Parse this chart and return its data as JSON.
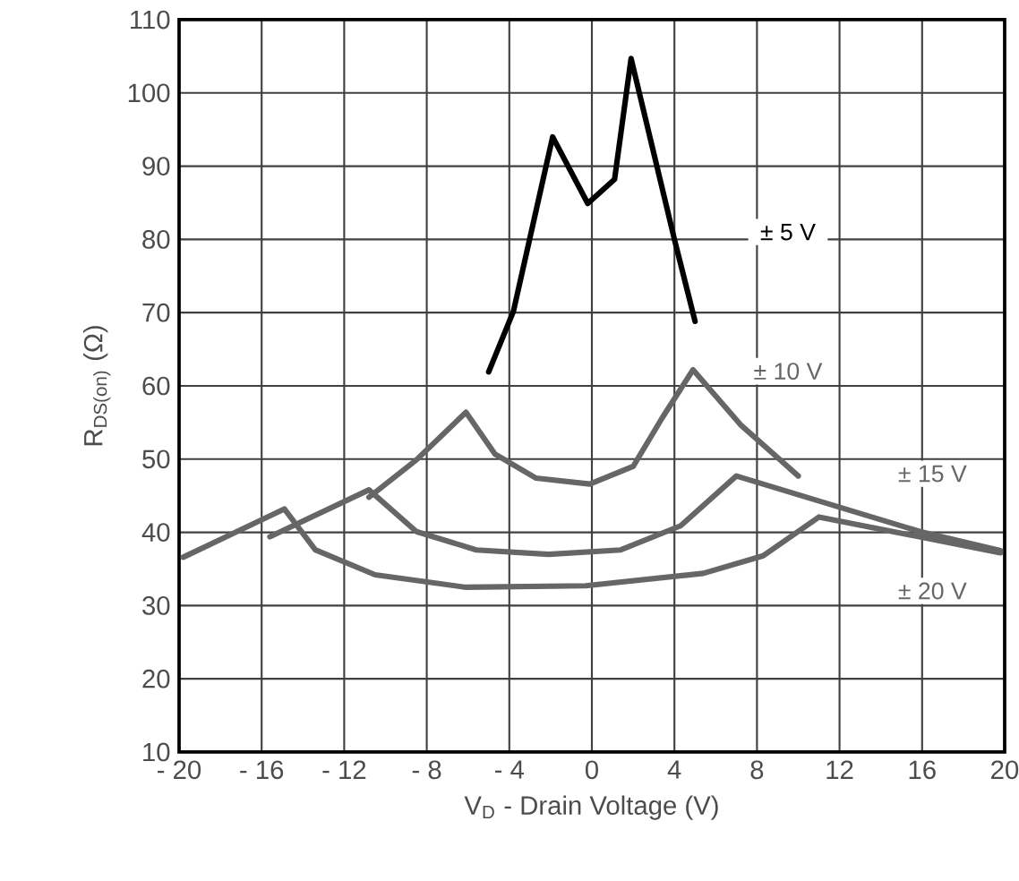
{
  "chart_data": {
    "type": "line",
    "xlabel": "V$_{D}$ - Drain Voltage (V)",
    "ylabel": "R$_{DS(on)}$ (Ω)",
    "xlim": [
      -20,
      20
    ],
    "ylim": [
      10,
      110
    ],
    "xticks": [
      {
        "value": -20,
        "label": "- 20"
      },
      {
        "value": -16,
        "label": "- 16"
      },
      {
        "value": -12,
        "label": "- 12"
      },
      {
        "value": -8,
        "label": "- 8"
      },
      {
        "value": -4,
        "label": "- 4"
      },
      0,
      4,
      8,
      12,
      16,
      20
    ],
    "yticks": [
      10,
      20,
      30,
      40,
      50,
      60,
      70,
      80,
      90,
      100,
      110
    ],
    "grid": true,
    "legend": false,
    "marker": "none",
    "line_style": "solid",
    "series": [
      {
        "name": "± 5 V",
        "color": "#000000",
        "x": [
          -5.0,
          -3.8,
          -1.9,
          -0.2,
          1.1,
          1.9,
          4.0,
          5.0
        ],
        "values": [
          61.9,
          70.2,
          94.0,
          84.9,
          88.2,
          104.7,
          80.0,
          68.8
        ]
      },
      {
        "name": "± 10 V",
        "color": "#666666",
        "x": [
          -10.8,
          -8.5,
          -6.1,
          -4.7,
          -2.7,
          -0.1,
          2.0,
          3.4,
          4.9,
          7.2,
          10.0
        ],
        "values": [
          44.8,
          49.9,
          56.4,
          50.7,
          47.4,
          46.6,
          49.0,
          55.6,
          62.2,
          54.7,
          47.7
        ]
      },
      {
        "name": "± 15 V",
        "color": "#666666",
        "x": [
          -15.6,
          -10.8,
          -8.5,
          -5.6,
          -2.1,
          1.4,
          4.3,
          7.0,
          15.9,
          19.8
        ],
        "values": [
          39.4,
          45.8,
          40.1,
          37.6,
          37.0,
          37.6,
          40.9,
          47.7,
          40.1,
          37.5
        ]
      },
      {
        "name": "± 20 V",
        "color": "#666666",
        "x": [
          -19.8,
          -17.2,
          -14.9,
          -13.4,
          -10.5,
          -6.1,
          -0.3,
          5.4,
          8.3,
          11.0,
          19.8
        ],
        "values": [
          36.6,
          40.1,
          43.2,
          37.6,
          34.2,
          32.5,
          32.7,
          34.4,
          36.8,
          42.1,
          37.2
        ]
      }
    ]
  }
}
